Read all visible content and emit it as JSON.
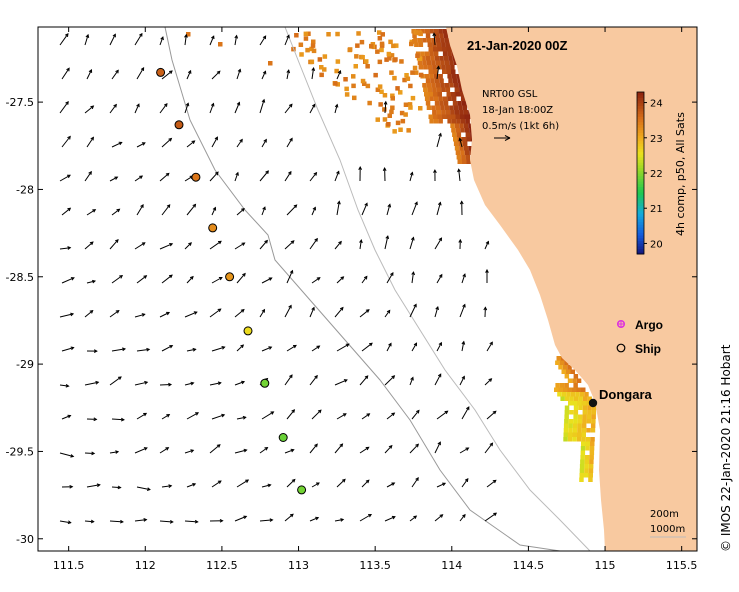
{
  "map": {
    "title": "21-Jan-2020 00Z",
    "product": {
      "line1": "NRT00 GSL",
      "line2": "18-Jan 18:00Z",
      "line3": "0.5m/s (1kt 6h)"
    },
    "colorbar": {
      "label": "4h comp, p50, All Sats",
      "ticks": [
        "24",
        "23",
        "22",
        "21",
        "20"
      ],
      "min": 19.7,
      "max": 24.3
    },
    "legend": {
      "argo": "Argo",
      "ship": "Ship"
    },
    "place": "Dongara",
    "depth_labels": [
      "200m",
      "1000m"
    ],
    "credit": "© IMOS 22-Jan-2020 21:16 Hobart",
    "x_ticks": [
      "111.5",
      "112",
      "112.5",
      "113",
      "113.5",
      "114",
      "114.5",
      "115",
      "115.5"
    ],
    "y_ticks": [
      "-27.5",
      "-28",
      "-28.5",
      "-29",
      "-29.5",
      "-30"
    ],
    "lon_range": [
      111.3,
      115.6
    ],
    "lat_range": [
      -30.07,
      -27.07
    ],
    "colors": {
      "land": "#f8c9a0",
      "argo": "#dd33dd",
      "ship": "#111111",
      "isobath": "#999999"
    },
    "drifter_track": [
      {
        "lon": 112.1,
        "lat": -27.33,
        "sst": 23.7
      },
      {
        "lon": 112.22,
        "lat": -27.63,
        "sst": 23.75
      },
      {
        "lon": 112.33,
        "lat": -27.93,
        "sst": 23.5
      },
      {
        "lon": 112.44,
        "lat": -28.22,
        "sst": 23.3
      },
      {
        "lon": 112.55,
        "lat": -28.5,
        "sst": 23.2
      },
      {
        "lon": 112.67,
        "lat": -28.81,
        "sst": 22.6
      },
      {
        "lon": 112.78,
        "lat": -29.11,
        "sst": 21.9
      },
      {
        "lon": 112.9,
        "lat": -29.42,
        "sst": 21.85
      },
      {
        "lon": 113.02,
        "lat": -29.72,
        "sst": 21.9
      }
    ]
  }
}
